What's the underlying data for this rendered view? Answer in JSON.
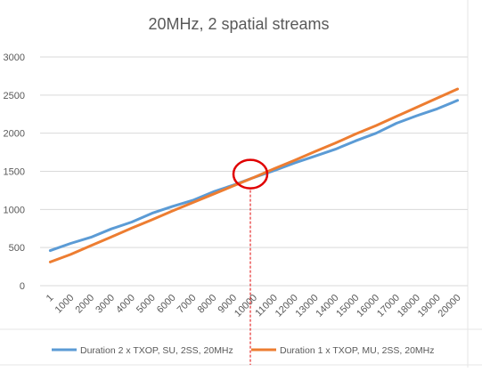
{
  "chart_data": {
    "type": "line",
    "title": "20MHz, 2 spatial streams",
    "xlabel": "",
    "ylabel": "",
    "categories": [
      "1",
      "1000",
      "2000",
      "3000",
      "4000",
      "5000",
      "6000",
      "7000",
      "8000",
      "9000",
      "10000",
      "11000",
      "12000",
      "13000",
      "14000",
      "15000",
      "16000",
      "17000",
      "18000",
      "19000",
      "20000"
    ],
    "ylim": [
      0,
      3000
    ],
    "yticks": [
      0,
      500,
      1000,
      1500,
      2000,
      2500,
      3000
    ],
    "grid": true,
    "legend_position": "bottom",
    "series": [
      {
        "name": "Duration 2 x TXOP, SU, 2SS, 20MHz",
        "color": "#5b9bd5",
        "values": [
          460,
          555,
          635,
          745,
          835,
          950,
          1040,
          1120,
          1230,
          1320,
          1420,
          1510,
          1610,
          1700,
          1790,
          1900,
          2000,
          2130,
          2230,
          2320,
          2430
        ]
      },
      {
        "name": "Duration 1 x TXOP, MU, 2SS, 20MHz",
        "color": "#ed7d31",
        "values": [
          310,
          410,
          525,
          640,
          755,
          865,
          980,
          1090,
          1200,
          1310,
          1420,
          1535,
          1645,
          1760,
          1870,
          1990,
          2100,
          2220,
          2340,
          2460,
          2580
        ]
      }
    ],
    "annotation": {
      "type": "circle-marker",
      "category": "10000",
      "value": 1440,
      "color": "#e00000"
    }
  }
}
